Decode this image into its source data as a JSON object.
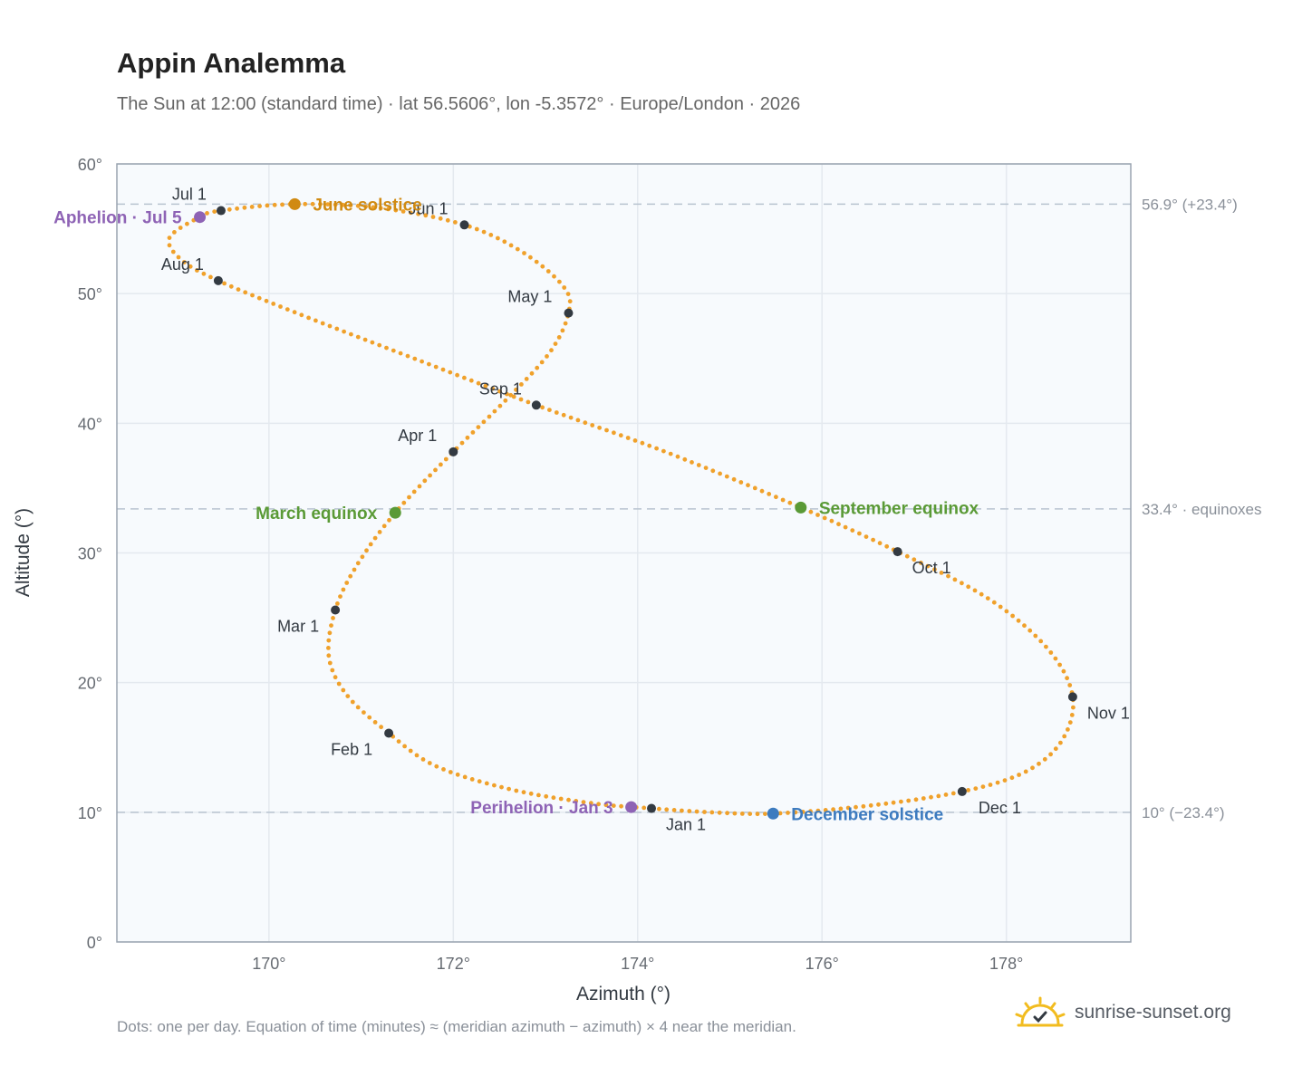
{
  "title": "Appin Analemma",
  "subtitle": "The Sun at 12:00 (standard time) · lat 56.5606°, lon -5.3572° · Europe/London · 2026",
  "footnote": "Dots: one per day. Equation of time (minutes) ≈ (meridian azimuth − azimuth) × 4 near the meridian.",
  "brand": {
    "text": "sunrise-sunset.org",
    "icon": "sunrise-logo-icon"
  },
  "colors": {
    "curve": "#f0a12b",
    "month_marker": "#333a42",
    "solstice_june": "#d08a12",
    "solstice_december": "#3d7bbf",
    "equinox": "#5a9a36",
    "apsis": "#8e63b5",
    "plot_bg": "#f7fafd",
    "grid": "#e4e9ef",
    "ref_line": "#b8c4d0"
  },
  "chart_data": {
    "type": "scatter",
    "xlabel": "Azimuth (°)",
    "ylabel": "Altitude (°)",
    "xlim": [
      168.35,
      179.35
    ],
    "ylim": [
      0,
      60
    ],
    "xticks": [
      170,
      172,
      174,
      176,
      178
    ],
    "yticks": [
      0,
      10,
      20,
      30,
      40,
      50,
      60
    ],
    "xtick_suffix": "°",
    "ytick_suffix": "°",
    "grid": true,
    "reference_lines": [
      {
        "y": 56.9,
        "label": "56.9° (+23.4°)"
      },
      {
        "y": 33.4,
        "label": "33.4° · equinoxes"
      },
      {
        "y": 10,
        "label": "10° (−23.4°)"
      }
    ],
    "month_markers": [
      {
        "label": "Jan 1",
        "az": 174.15,
        "alt": 10.3
      },
      {
        "label": "Feb 1",
        "az": 171.3,
        "alt": 16.1
      },
      {
        "label": "Mar 1",
        "az": 170.72,
        "alt": 25.6
      },
      {
        "label": "Apr 1",
        "az": 172.0,
        "alt": 37.8
      },
      {
        "label": "May 1",
        "az": 173.25,
        "alt": 48.5
      },
      {
        "label": "Jun 1",
        "az": 172.12,
        "alt": 55.3
      },
      {
        "label": "Jul 1",
        "az": 169.48,
        "alt": 56.4
      },
      {
        "label": "Aug 1",
        "az": 169.45,
        "alt": 51.0
      },
      {
        "label": "Sep 1",
        "az": 172.9,
        "alt": 41.4
      },
      {
        "label": "Oct 1",
        "az": 176.82,
        "alt": 30.1
      },
      {
        "label": "Nov 1",
        "az": 178.72,
        "alt": 18.9
      },
      {
        "label": "Dec 1",
        "az": 177.52,
        "alt": 11.6
      }
    ],
    "events": [
      {
        "label": "June solstice",
        "az": 170.28,
        "alt": 56.9,
        "kind": "solstice_june"
      },
      {
        "label": "December solstice",
        "az": 175.47,
        "alt": 9.9,
        "kind": "solstice_december"
      },
      {
        "label": "March equinox",
        "az": 171.37,
        "alt": 33.1,
        "kind": "equinox"
      },
      {
        "label": "September equinox",
        "az": 175.77,
        "alt": 33.5,
        "kind": "equinox"
      },
      {
        "label": "Aphelion · Jul 5",
        "az": 169.25,
        "alt": 55.9,
        "kind": "apsis"
      },
      {
        "label": "Perihelion · Jan 3",
        "az": 173.93,
        "alt": 10.4,
        "kind": "apsis"
      }
    ],
    "curve_anchors": [
      {
        "az": 174.15,
        "alt": 10.3
      },
      {
        "az": 173.5,
        "alt": 10.7
      },
      {
        "az": 172.6,
        "alt": 11.8
      },
      {
        "az": 171.8,
        "alt": 13.6
      },
      {
        "az": 171.3,
        "alt": 16.1
      },
      {
        "az": 170.85,
        "alt": 19.0
      },
      {
        "az": 170.65,
        "alt": 22.0
      },
      {
        "az": 170.72,
        "alt": 25.6
      },
      {
        "az": 170.95,
        "alt": 29.0
      },
      {
        "az": 171.37,
        "alt": 33.1
      },
      {
        "az": 172.0,
        "alt": 37.8
      },
      {
        "az": 172.6,
        "alt": 42.0
      },
      {
        "az": 173.05,
        "alt": 45.5
      },
      {
        "az": 173.25,
        "alt": 48.5
      },
      {
        "az": 173.2,
        "alt": 50.5
      },
      {
        "az": 172.75,
        "alt": 53.2
      },
      {
        "az": 172.12,
        "alt": 55.3
      },
      {
        "az": 171.2,
        "alt": 56.6
      },
      {
        "az": 170.28,
        "alt": 56.9
      },
      {
        "az": 169.48,
        "alt": 56.4
      },
      {
        "az": 169.25,
        "alt": 55.9
      },
      {
        "az": 168.92,
        "alt": 54.3
      },
      {
        "az": 169.05,
        "alt": 52.6
      },
      {
        "az": 169.45,
        "alt": 51.0
      },
      {
        "az": 170.3,
        "alt": 48.5
      },
      {
        "az": 171.5,
        "alt": 45.2
      },
      {
        "az": 172.9,
        "alt": 41.4
      },
      {
        "az": 174.3,
        "alt": 37.8
      },
      {
        "az": 175.77,
        "alt": 33.5
      },
      {
        "az": 176.82,
        "alt": 30.1
      },
      {
        "az": 177.8,
        "alt": 26.5
      },
      {
        "az": 178.45,
        "alt": 22.6
      },
      {
        "az": 178.72,
        "alt": 18.9
      },
      {
        "az": 178.6,
        "alt": 15.5
      },
      {
        "az": 178.2,
        "alt": 13.1
      },
      {
        "az": 177.52,
        "alt": 11.6
      },
      {
        "az": 176.5,
        "alt": 10.5
      },
      {
        "az": 175.47,
        "alt": 9.9
      },
      {
        "az": 174.8,
        "alt": 10.0
      },
      {
        "az": 174.15,
        "alt": 10.3
      }
    ]
  }
}
